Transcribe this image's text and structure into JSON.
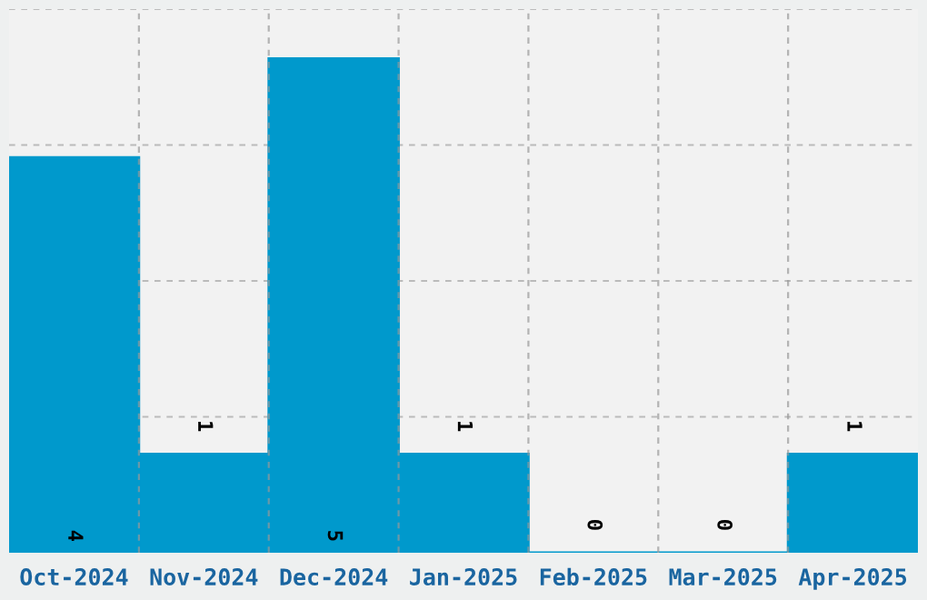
{
  "chart_data": {
    "type": "bar",
    "categories": [
      "Oct-2024",
      "Nov-2024",
      "Dec-2024",
      "Jan-2025",
      "Feb-2025",
      "Mar-2025",
      "Apr-2025"
    ],
    "values": [
      4,
      1,
      5,
      1,
      0,
      0,
      1
    ],
    "color": "#0099cc",
    "ylim": [
      0,
      5.5
    ],
    "tick_labels": "x",
    "grid": true,
    "data_labels": true
  }
}
